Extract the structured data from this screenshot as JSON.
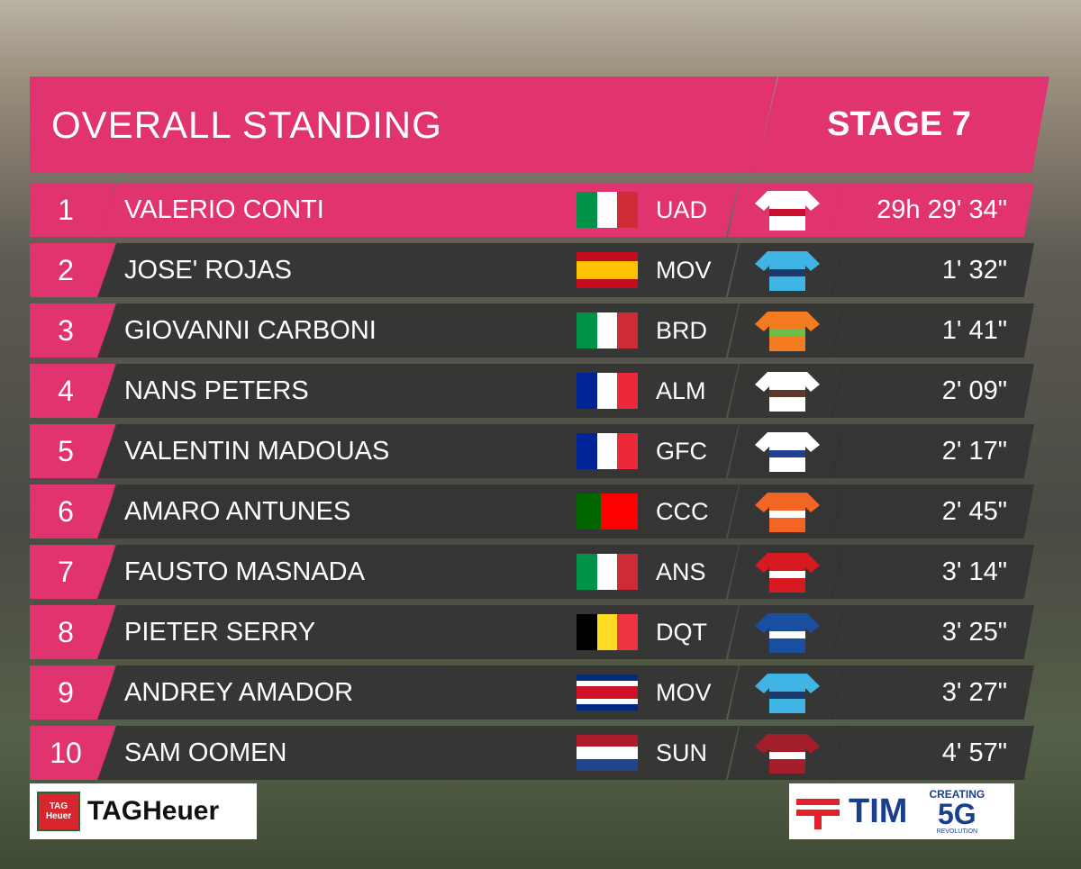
{
  "header": {
    "title": "OVERALL STANDING",
    "stage": "STAGE 7"
  },
  "table": {
    "rows": [
      {
        "rank": 1,
        "name": "VALERIO CONTI",
        "team": "UAD",
        "time": "29h 29' 34\""
      },
      {
        "rank": 2,
        "name": "JOSE' ROJAS",
        "team": "MOV",
        "time": "1' 32\""
      },
      {
        "rank": 3,
        "name": "GIOVANNI CARBONI",
        "team": "BRD",
        "time": "1' 41\""
      },
      {
        "rank": 4,
        "name": "NANS PETERS",
        "team": "ALM",
        "time": "2' 09\""
      },
      {
        "rank": 5,
        "name": "VALENTIN MADOUAS",
        "team": "GFC",
        "time": "2' 17\""
      },
      {
        "rank": 6,
        "name": "AMARO ANTUNES",
        "team": "CCC",
        "time": "2' 45\""
      },
      {
        "rank": 7,
        "name": "FAUSTO MASNADA",
        "team": "ANS",
        "time": "3' 14\""
      },
      {
        "rank": 8,
        "name": "PIETER SERRY",
        "team": "DQT",
        "time": "3' 25\""
      },
      {
        "rank": 9,
        "name": "ANDREY AMADOR",
        "team": "MOV",
        "time": "3' 27\""
      },
      {
        "rank": 10,
        "name": "SAM OOMEN",
        "team": "SUN",
        "time": "4' 57\""
      }
    ]
  },
  "sponsors": {
    "left": {
      "mark": "TAG Heuer",
      "name": "TAGHeuer"
    },
    "right": {
      "name": "TIM",
      "tagline": "CREATING",
      "big": "5G",
      "sub": "REVOLUTION"
    }
  }
}
